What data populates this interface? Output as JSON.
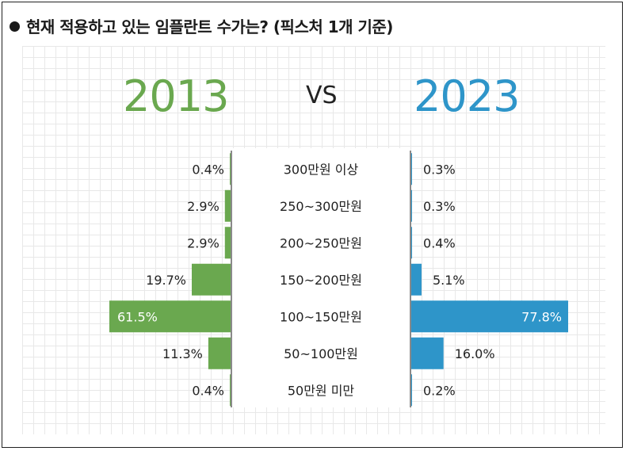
{
  "title": "현재 적용하고 있는 임플란트 수가는? (픽스처 1개 기준)",
  "vs_label": "VS",
  "colors": {
    "left": "#6aa84f",
    "right": "#2e95c9"
  },
  "chart_data": {
    "type": "bar",
    "categories": [
      "300만원 이상",
      "250~300만원",
      "200~250만원",
      "150~200만원",
      "100~150만원",
      "50~100만원",
      "50만원 미만"
    ],
    "series": [
      {
        "name": "2013",
        "values": [
          0.4,
          2.9,
          2.9,
          19.7,
          61.5,
          11.3,
          0.4
        ],
        "labels": [
          "0.4%",
          "2.9%",
          "2.9%",
          "19.7%",
          "61.5%",
          "11.3%",
          "0.4%"
        ]
      },
      {
        "name": "2023",
        "values": [
          0.3,
          0.3,
          0.4,
          5.1,
          77.8,
          16.0,
          0.2
        ],
        "labels": [
          "0.3%",
          "0.3%",
          "0.4%",
          "5.1%",
          "77.8%",
          "16.0%",
          "0.2%"
        ]
      }
    ],
    "unit": "%",
    "orientation": "horizontal-butterfly"
  }
}
